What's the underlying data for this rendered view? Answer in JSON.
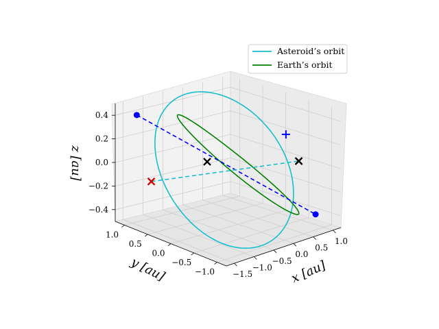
{
  "chart_data": {
    "type": "line3d",
    "view": {
      "elevation_deg": 20,
      "azimuth_deg": -135
    },
    "grid": true,
    "legend_placement": "top-right",
    "axes": {
      "x": {
        "label": "x [au]",
        "lim": [
          -1.7,
          1.2
        ],
        "ticks": [
          -1.5,
          -1.0,
          -0.5,
          0.0,
          0.5,
          1.0
        ],
        "tick_labels": [
          "−1.5",
          "−1.0",
          "−0.5",
          "0.0",
          "0.5",
          "1.0"
        ]
      },
      "y": {
        "label": "y [au]",
        "lim": [
          -1.2,
          1.2
        ],
        "ticks": [
          -1.0,
          -0.5,
          0.0,
          0.5,
          1.0
        ],
        "tick_labels": [
          "−1.0",
          "−0.5",
          "0.0",
          "0.5",
          "1.0"
        ]
      },
      "z": {
        "label": "z [au]",
        "lim": [
          -0.5,
          0.5
        ],
        "ticks": [
          -0.4,
          -0.2,
          0.0,
          0.2,
          0.4
        ],
        "tick_labels": [
          "−0.4",
          "−0.2",
          "0.0",
          "0.2",
          "0.4"
        ]
      }
    },
    "series": [
      {
        "name": "Asteroid’s orbit",
        "kind": "ellipse",
        "color": "#17becf",
        "center": [
          -0.35,
          0.0,
          0.0
        ],
        "radius": [
          1.25,
          1.05,
          0.48
        ],
        "inclination_note": "tilted"
      },
      {
        "name": "Earth’s orbit",
        "kind": "circle",
        "color": "#008000",
        "center": [
          0.0,
          0.0,
          0.0
        ],
        "radius": [
          1.0,
          1.0,
          0.0
        ]
      }
    ],
    "points": [
      {
        "marker": "circle",
        "color": "#0000ff",
        "xyz": [
          -1.45,
          0.95,
          0.42
        ]
      },
      {
        "marker": "circle",
        "color": "#0000ff",
        "xyz": [
          0.85,
          -0.95,
          -0.38
        ]
      },
      {
        "marker": "plus",
        "color": "#0000ff",
        "xyz": [
          0.1,
          -0.95,
          0.38
        ]
      },
      {
        "marker": "x",
        "color": "#000000",
        "xyz": [
          -0.2,
          0.5,
          -0.02
        ]
      },
      {
        "marker": "x",
        "color": "#000000",
        "xyz": [
          0.6,
          -0.8,
          0.08
        ]
      },
      {
        "marker": "x",
        "color": "#cc0000",
        "xyz": [
          -1.2,
          0.85,
          -0.15
        ]
      }
    ],
    "lines": [
      {
        "style": "dashed",
        "color": "#0000ff",
        "from": [
          -1.45,
          0.95,
          0.42
        ],
        "to": [
          0.85,
          -0.95,
          -0.38
        ]
      },
      {
        "style": "dashed",
        "color": "#17becf",
        "from": [
          -1.2,
          0.85,
          -0.15
        ],
        "to": [
          0.6,
          -0.8,
          0.08
        ]
      }
    ]
  }
}
